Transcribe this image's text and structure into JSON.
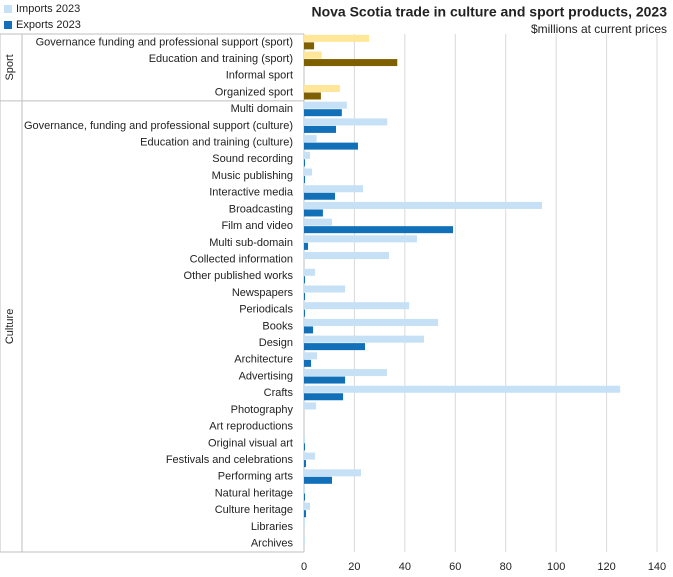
{
  "chart_data": {
    "type": "grouped-hbar",
    "title": "Nova Scotia trade in culture and sport products, 2023",
    "subtitle": "$millions at current prices",
    "categories": [
      "Governance funding and professional support (sport)",
      "Education and training (sport)",
      "Informal sport",
      "Organized sport",
      "Multi domain",
      "Governance, funding and professional support (culture)",
      "Education and training (culture)",
      "Sound recording",
      "Music publishing",
      "Interactive media",
      "Broadcasting",
      "Film and video",
      "Multi sub-domain",
      "Collected information",
      "Other published works",
      "Newspapers",
      "Periodicals",
      "Books",
      "Design",
      "Architecture",
      "Advertising",
      "Crafts",
      "Photography",
      "Art reproductions",
      "Original visual art",
      "Festivals and celebrations",
      "Performing arts",
      "Natural heritage",
      "Culture heritage",
      "Libraries",
      "Archives"
    ],
    "series": [
      {
        "name": "Imports 2023",
        "color": "#c6e0f5",
        "values": [
          25.8,
          7,
          0,
          14.3,
          17,
          33,
          5,
          2.4,
          3.2,
          23.4,
          94.4,
          11.1,
          44.8,
          33.7,
          4.4,
          16.3,
          41.7,
          53.2,
          47.6,
          5.2,
          32.9,
          125.4,
          4.8,
          0,
          0.4,
          4.4,
          22.6,
          0.4,
          2.4,
          0.4,
          0.4
        ]
      },
      {
        "name": "Exports 2023",
        "color": "#1170b8",
        "values": [
          4,
          37,
          0,
          6.7,
          15,
          12.7,
          21.4,
          0.4,
          0.4,
          12.3,
          7.5,
          59.1,
          1.6,
          0,
          0.4,
          0.4,
          0.4,
          3.6,
          24.2,
          2.8,
          16.3,
          15.5,
          0,
          0,
          0.4,
          0.8,
          11.1,
          0.4,
          0.8,
          0,
          0
        ]
      }
    ],
    "groups": [
      {
        "name": "Sport",
        "size": 4,
        "colors": [
          "#ffe699",
          "#7f6000"
        ]
      },
      {
        "name": "Culture",
        "size": 27
      }
    ],
    "xlim": [
      0,
      140
    ],
    "xticks": [
      0,
      20,
      40,
      60,
      80,
      100,
      120,
      140
    ],
    "grid": true,
    "legend": "top-left"
  }
}
